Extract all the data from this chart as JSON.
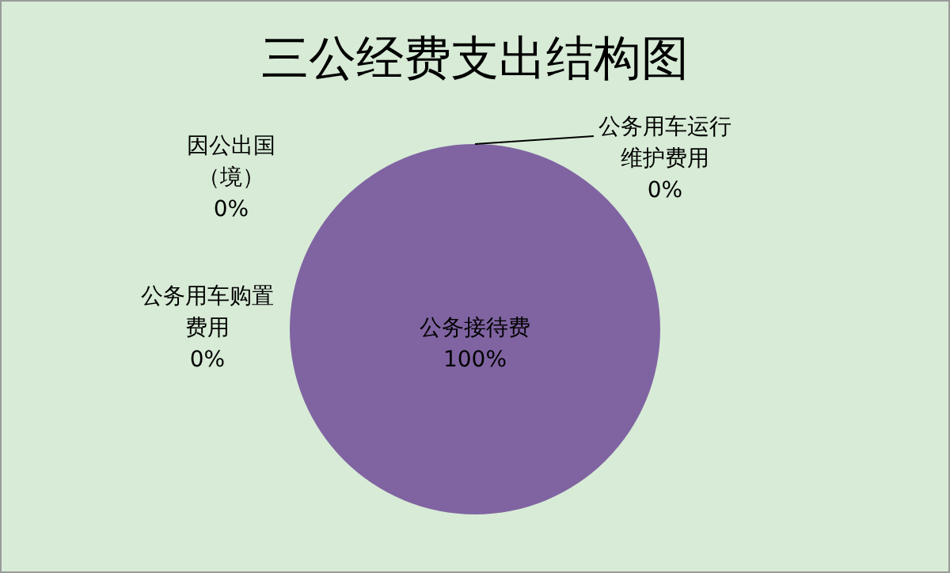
{
  "chart_data": {
    "type": "pie",
    "title": "三公经费支出结构图",
    "categories": [
      "公务接待费",
      "因公出国（境）",
      "公务用车购置费用",
      "公务用车运行维护费用"
    ],
    "values": [
      100,
      0,
      0,
      0
    ],
    "value_labels": [
      "100%",
      "0%",
      "0%",
      "0%"
    ],
    "colors": [
      "#8064a2",
      "#4f81bd",
      "#c0504d",
      "#9bbb59"
    ],
    "legend": false
  }
}
